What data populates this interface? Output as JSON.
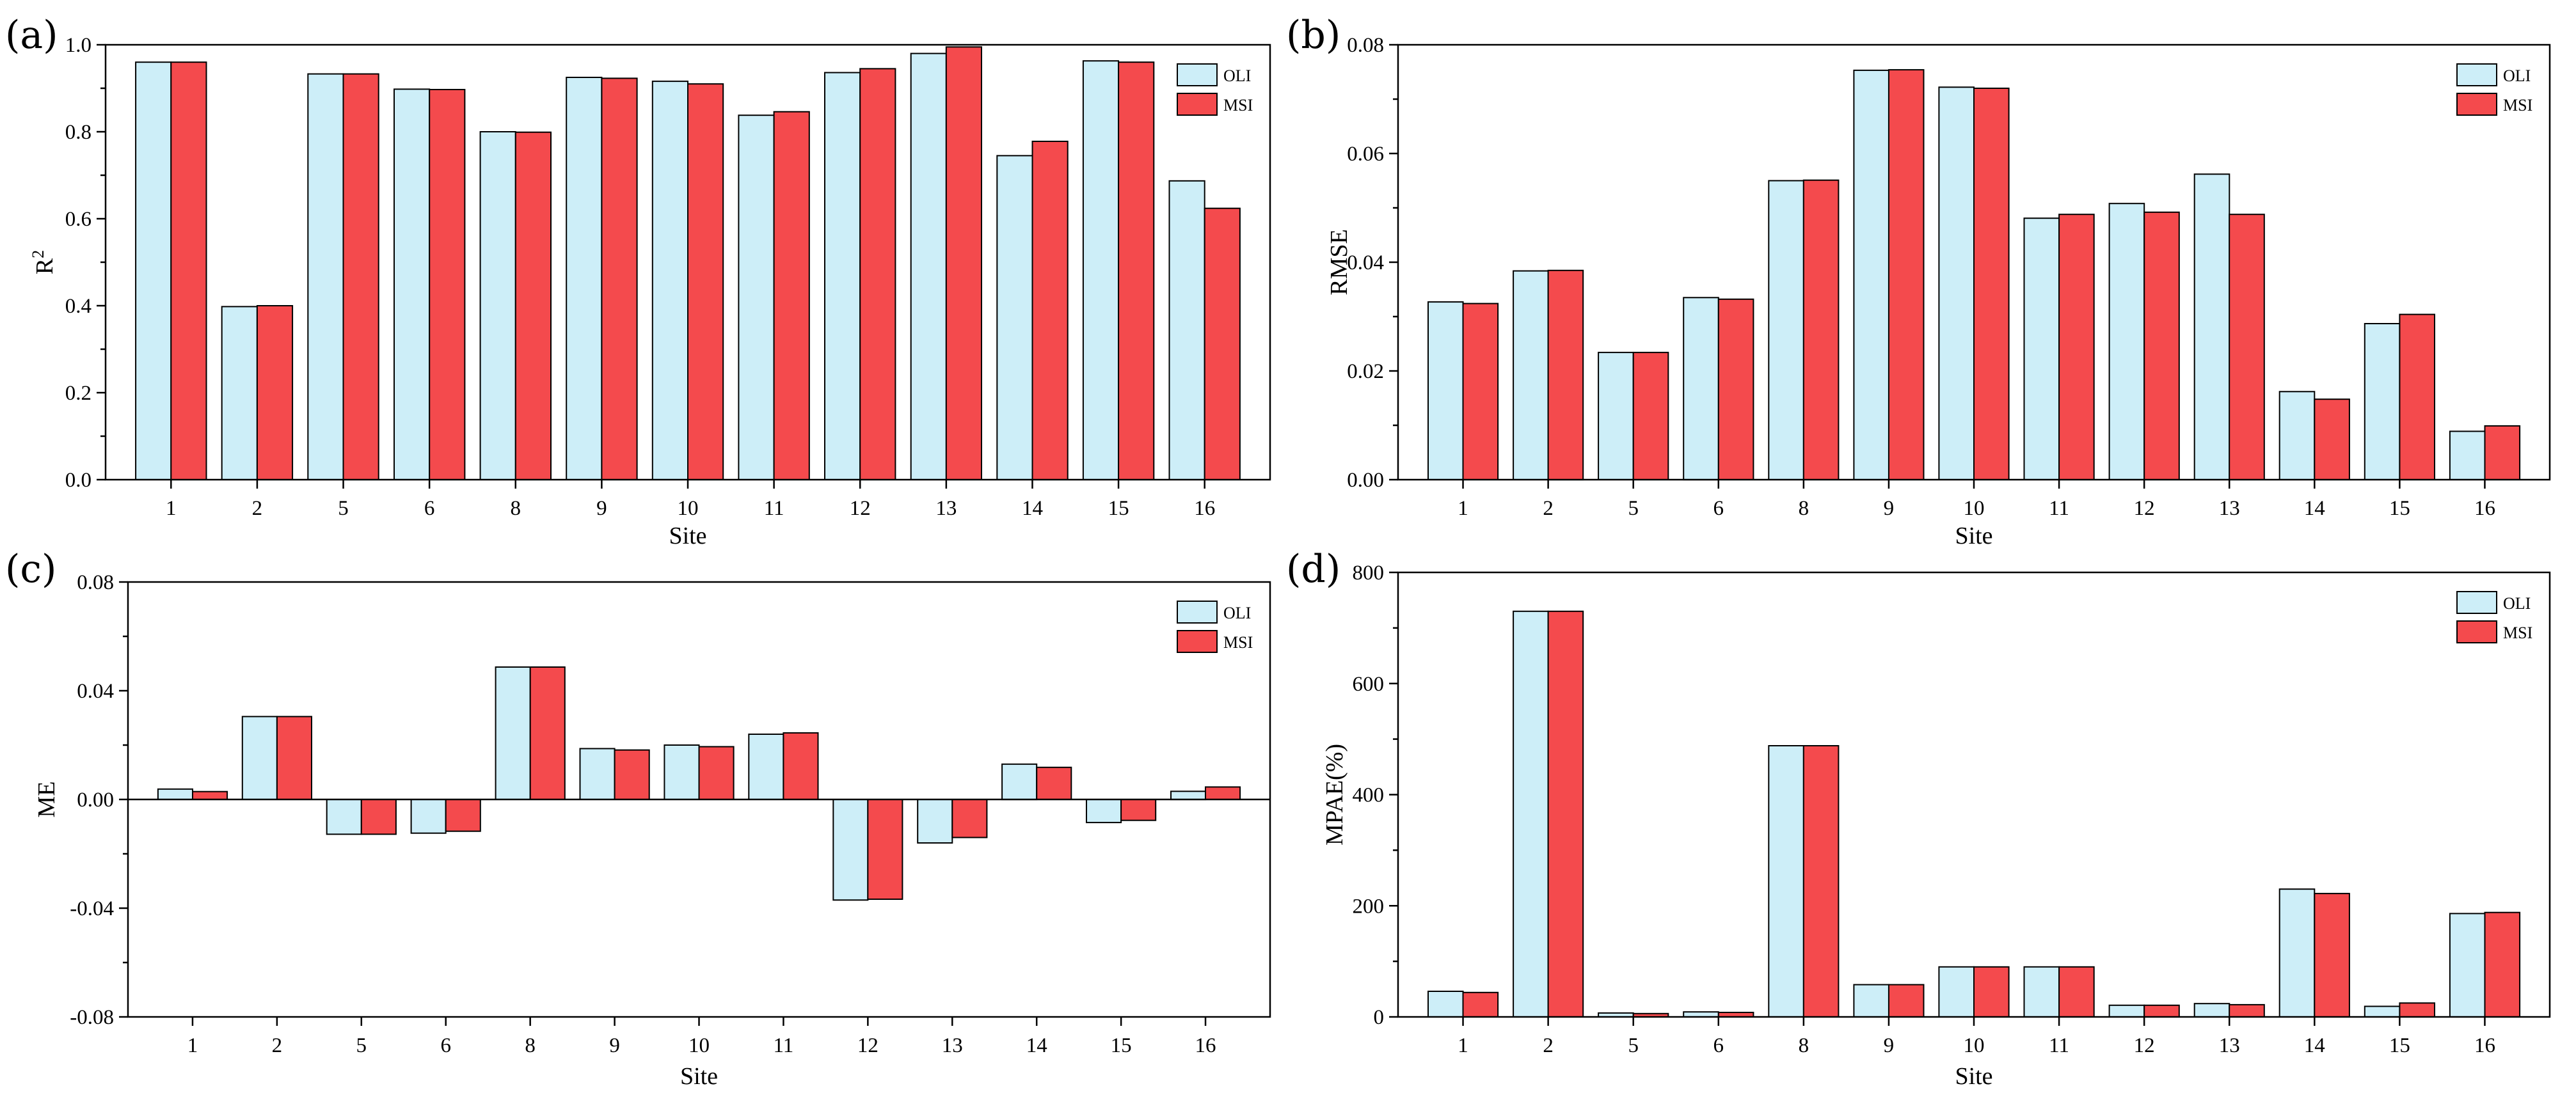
{
  "colors": {
    "oli": "#cdeef8",
    "msi": "#f44a4d",
    "stroke": "#000000"
  },
  "chart_data": [
    {
      "type": "bar",
      "panel": "(a)",
      "categories": [
        "1",
        "2",
        "5",
        "6",
        "8",
        "9",
        "10",
        "11",
        "12",
        "13",
        "14",
        "15",
        "16"
      ],
      "series": [
        {
          "name": "OLI",
          "values": [
            0.96,
            0.398,
            0.933,
            0.898,
            0.8,
            0.925,
            0.916,
            0.838,
            0.936,
            0.98,
            0.745,
            0.963,
            0.687
          ]
        },
        {
          "name": "MSI",
          "values": [
            0.96,
            0.4,
            0.933,
            0.897,
            0.799,
            0.923,
            0.91,
            0.846,
            0.945,
            0.995,
            0.778,
            0.96,
            0.624
          ]
        }
      ],
      "ylim": [
        0,
        1.0
      ],
      "yticks": [
        "0.0",
        "0.2",
        "0.4",
        "0.6",
        "0.8",
        "1.0"
      ],
      "ytick_values": [
        0,
        0.2,
        0.4,
        0.6,
        0.8,
        1.0
      ],
      "ylabel": "R",
      "ylabel_sup": "2",
      "xlabel": "Site",
      "legend": [
        "OLI",
        "MSI"
      ],
      "legend_position": "top-right"
    },
    {
      "type": "bar",
      "panel": "(b)",
      "categories": [
        "1",
        "2",
        "5",
        "6",
        "8",
        "9",
        "10",
        "11",
        "12",
        "13",
        "14",
        "15",
        "16"
      ],
      "series": [
        {
          "name": "OLI",
          "values": [
            0.0327,
            0.0384,
            0.0234,
            0.0335,
            0.055,
            0.0753,
            0.0722,
            0.0481,
            0.0508,
            0.0562,
            0.0162,
            0.0287,
            0.0089
          ]
        },
        {
          "name": "MSI",
          "values": [
            0.0324,
            0.0385,
            0.0234,
            0.0332,
            0.0551,
            0.0754,
            0.072,
            0.0488,
            0.0492,
            0.0488,
            0.0148,
            0.0304,
            0.0099
          ]
        }
      ],
      "ylim": [
        0,
        0.08
      ],
      "yticks": [
        "0.00",
        "0.02",
        "0.04",
        "0.06",
        "0.08"
      ],
      "ytick_values": [
        0,
        0.02,
        0.04,
        0.06,
        0.08
      ],
      "ylabel": "RMSE",
      "xlabel": "Site",
      "legend": [
        "OLI",
        "MSI"
      ],
      "legend_position": "top-right"
    },
    {
      "type": "bar",
      "panel": "(c)",
      "categories": [
        "1",
        "2",
        "5",
        "6",
        "8",
        "9",
        "10",
        "11",
        "12",
        "13",
        "14",
        "15",
        "16"
      ],
      "series": [
        {
          "name": "OLI",
          "values": [
            0.0038,
            0.0305,
            -0.0128,
            -0.0124,
            0.0487,
            0.0187,
            0.02,
            0.024,
            -0.037,
            -0.016,
            0.013,
            -0.0085,
            0.003
          ]
        },
        {
          "name": "MSI",
          "values": [
            0.0029,
            0.0305,
            -0.0128,
            -0.0117,
            0.0487,
            0.0182,
            0.0194,
            0.0245,
            -0.0367,
            -0.014,
            0.0118,
            -0.0077,
            0.0046
          ]
        }
      ],
      "ylim": [
        -0.08,
        0.08
      ],
      "yticks": [
        "-0.08",
        "-0.04",
        "0.00",
        "0.04",
        "0.08"
      ],
      "ytick_values": [
        -0.08,
        -0.04,
        0,
        0.04,
        0.08
      ],
      "ylabel": "ME",
      "xlabel": "Site",
      "legend": [
        "OLI",
        "MSI"
      ],
      "legend_position": "top-right"
    },
    {
      "type": "bar",
      "panel": "(d)",
      "categories": [
        "1",
        "2",
        "5",
        "6",
        "8",
        "9",
        "10",
        "11",
        "12",
        "13",
        "14",
        "15",
        "16"
      ],
      "series": [
        {
          "name": "OLI",
          "values": [
            46,
            730,
            7,
            9,
            488,
            58,
            90,
            90,
            21,
            24,
            230,
            19,
            186
          ]
        },
        {
          "name": "MSI",
          "values": [
            44,
            730,
            6,
            8,
            488,
            58,
            90,
            90,
            21,
            22,
            222,
            25,
            188
          ]
        }
      ],
      "ylim": [
        0,
        800
      ],
      "yticks": [
        "0",
        "200",
        "400",
        "600",
        "800"
      ],
      "ytick_values": [
        0,
        200,
        400,
        600,
        800
      ],
      "ylabel": "MPAE(%)",
      "xlabel": "Site",
      "legend": [
        "OLI",
        "MSI"
      ],
      "legend_position": "top-right"
    }
  ]
}
